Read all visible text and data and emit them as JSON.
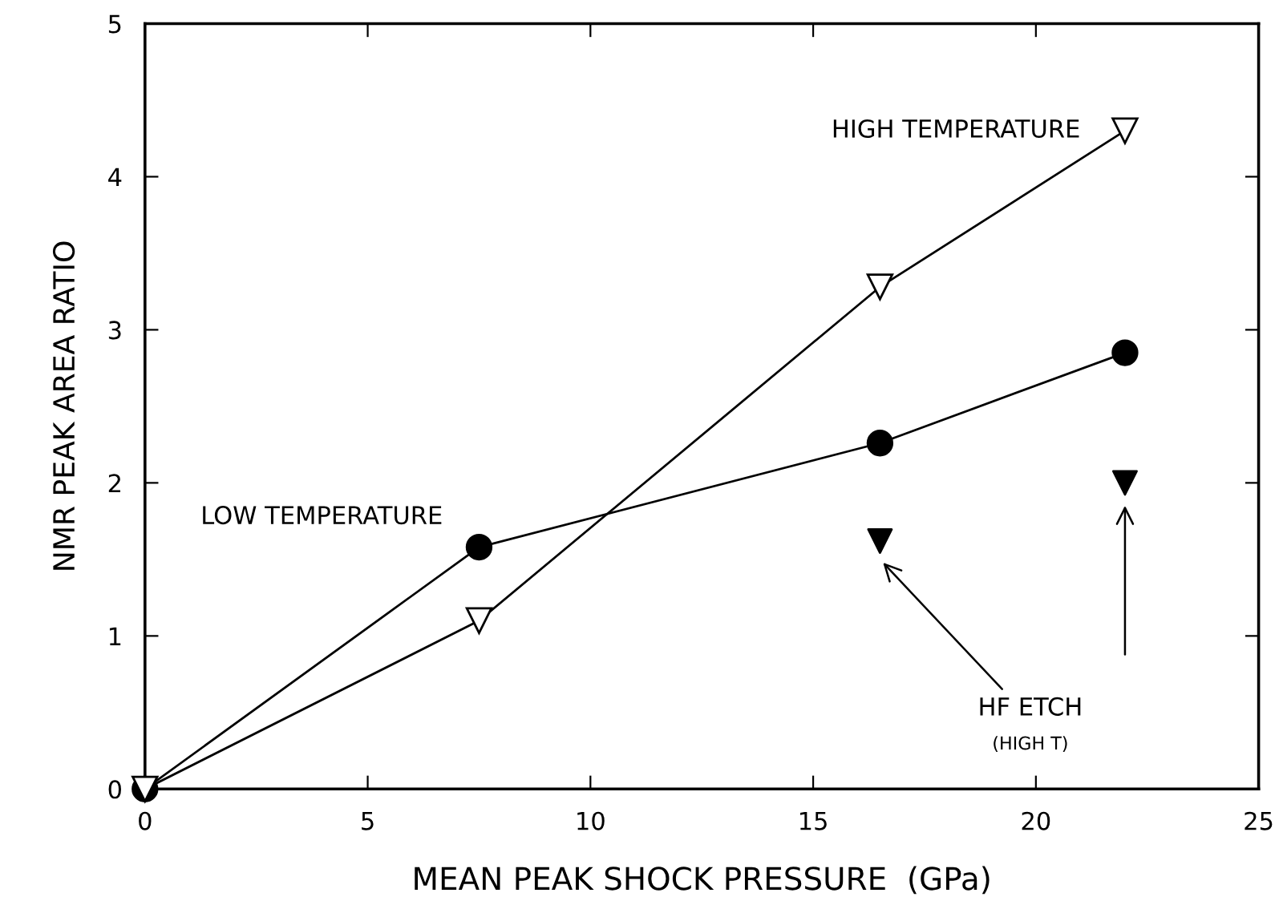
{
  "chart_data": {
    "type": "line",
    "xlabel": "MEAN PEAK SHOCK PRESSURE  (GPa)",
    "ylabel": "NMR PEAK AREA RATIO",
    "xlim": [
      0,
      25
    ],
    "xticks": [
      0,
      5,
      10,
      15,
      20,
      25
    ],
    "ylim": [
      0,
      5
    ],
    "yticks": [
      0,
      1,
      2,
      3,
      4,
      5
    ],
    "grid": false,
    "legend": false,
    "line_style": "solid",
    "series": [
      {
        "name": "LOW TEMPERATURE",
        "color": "#000000",
        "marker": "circle",
        "x": [
          0,
          7.5,
          16.5,
          22
        ],
        "values": [
          0,
          1.58,
          2.26,
          2.85
        ]
      },
      {
        "name": "HIGH TEMPERATURE",
        "color": "#ffffff",
        "marker": "triangle",
        "x": [
          0,
          7.5,
          16.5,
          22
        ],
        "values": [
          0,
          1.1,
          3.28,
          4.3
        ]
      },
      {
        "name": "HF ETCH",
        "type": "scatter",
        "color": "#000000",
        "marker": "triangle",
        "x": [
          16.5,
          22
        ],
        "values": [
          1.62,
          2.0
        ]
      }
    ],
    "annotations": [
      "(HIGH T)"
    ]
  }
}
